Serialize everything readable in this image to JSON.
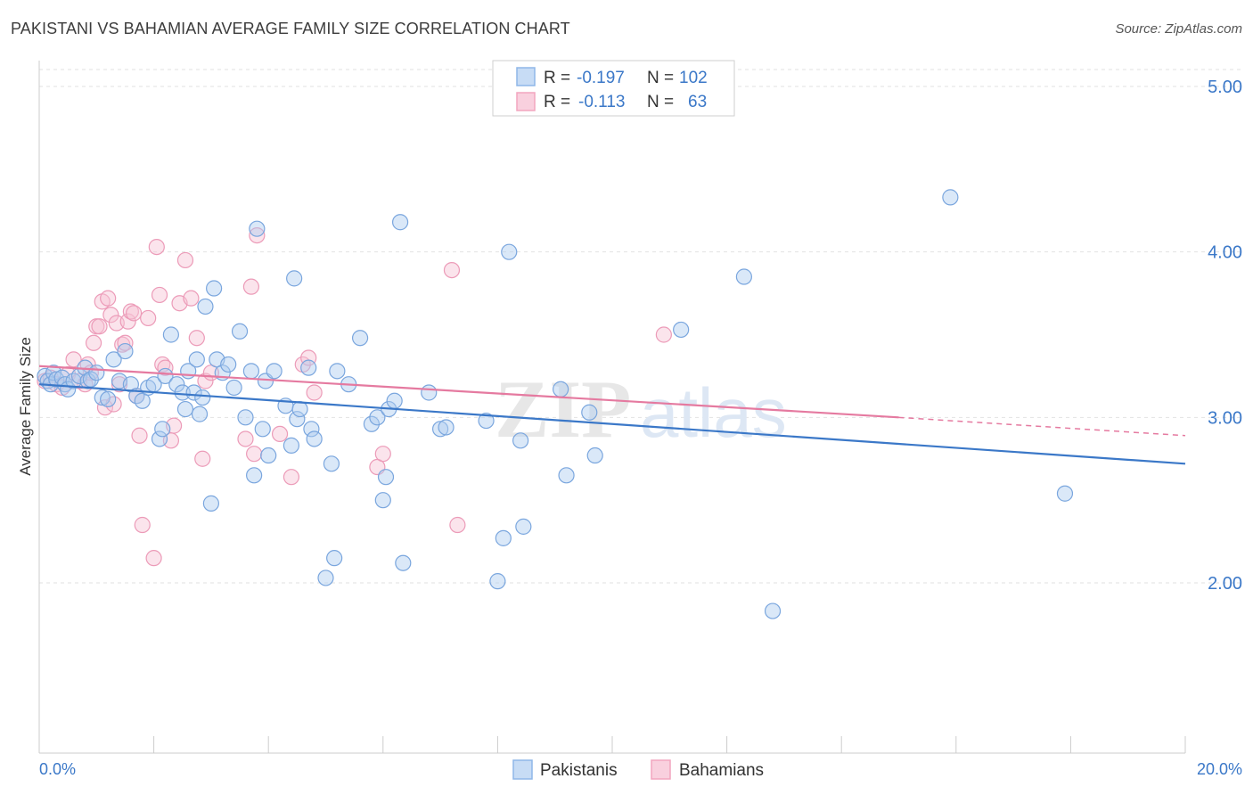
{
  "header": {
    "title": "PAKISTANI VS BAHAMIAN AVERAGE FAMILY SIZE CORRELATION CHART",
    "source": "Source: ZipAtlas.com"
  },
  "watermark": "ZIPatlas",
  "legend_box": {
    "rows": [
      {
        "r_label": "R =",
        "r_value": "-0.197",
        "n_label": "N =",
        "n_value": "102",
        "color": "#8fb7e8"
      },
      {
        "r_label": "R =",
        "r_value": "-0.113",
        "n_label": "N =",
        "n_value": "63",
        "color": "#f2a5bf"
      }
    ]
  },
  "bottom_legend": [
    {
      "label": "Pakistanis",
      "color": "#8fb7e8"
    },
    {
      "label": "Bahamians",
      "color": "#f2a5bf"
    }
  ],
  "chart_data": {
    "type": "scatter",
    "title": "PAKISTANI VS BAHAMIAN AVERAGE FAMILY SIZE CORRELATION CHART",
    "xlabel": "",
    "ylabel": "Average Family Size",
    "xlim": [
      0,
      20
    ],
    "ylim": [
      1.0,
      5.1
    ],
    "x_tick_labels": [
      "0.0%",
      "20.0%"
    ],
    "y_ticks": [
      2.0,
      3.0,
      4.0,
      5.0
    ],
    "y_tick_labels": [
      "2.00",
      "3.00",
      "4.00",
      "5.00"
    ],
    "grid": true,
    "colors": {
      "pakistanis": "#3b78c8",
      "bahamians": "#e57aa0",
      "blue_fill": "#aecbf0",
      "pink_fill": "#f7c3d5"
    },
    "series": [
      {
        "name": "Pakistanis",
        "trend": {
          "x": [
            0,
            20
          ],
          "y": [
            3.2,
            2.72
          ]
        },
        "points": [
          [
            0.1,
            3.25
          ],
          [
            0.15,
            3.22
          ],
          [
            0.2,
            3.2
          ],
          [
            0.25,
            3.27
          ],
          [
            0.3,
            3.23
          ],
          [
            0.4,
            3.24
          ],
          [
            0.45,
            3.2
          ],
          [
            0.5,
            3.17
          ],
          [
            0.6,
            3.22
          ],
          [
            0.7,
            3.25
          ],
          [
            0.8,
            3.3
          ],
          [
            0.85,
            3.22
          ],
          [
            0.9,
            3.23
          ],
          [
            1.0,
            3.27
          ],
          [
            1.1,
            3.12
          ],
          [
            1.2,
            3.11
          ],
          [
            1.3,
            3.35
          ],
          [
            1.4,
            3.22
          ],
          [
            1.5,
            3.4
          ],
          [
            1.6,
            3.2
          ],
          [
            1.7,
            3.13
          ],
          [
            1.8,
            3.1
          ],
          [
            1.9,
            3.18
          ],
          [
            2.0,
            3.2
          ],
          [
            2.1,
            2.87
          ],
          [
            2.15,
            2.93
          ],
          [
            2.2,
            3.25
          ],
          [
            2.3,
            3.5
          ],
          [
            2.4,
            3.2
          ],
          [
            2.5,
            3.15
          ],
          [
            2.55,
            3.05
          ],
          [
            2.6,
            3.28
          ],
          [
            2.7,
            3.15
          ],
          [
            2.75,
            3.35
          ],
          [
            2.8,
            3.02
          ],
          [
            2.85,
            3.12
          ],
          [
            2.9,
            3.67
          ],
          [
            3.0,
            2.48
          ],
          [
            3.05,
            3.78
          ],
          [
            3.1,
            3.35
          ],
          [
            3.2,
            3.27
          ],
          [
            3.3,
            3.32
          ],
          [
            3.4,
            3.18
          ],
          [
            3.5,
            3.52
          ],
          [
            3.6,
            3.0
          ],
          [
            3.7,
            3.28
          ],
          [
            3.75,
            2.65
          ],
          [
            3.8,
            4.14
          ],
          [
            3.9,
            2.93
          ],
          [
            3.95,
            3.22
          ],
          [
            4.0,
            2.77
          ],
          [
            4.1,
            3.28
          ],
          [
            4.3,
            3.07
          ],
          [
            4.4,
            2.83
          ],
          [
            4.45,
            3.84
          ],
          [
            4.5,
            2.99
          ],
          [
            4.55,
            3.05
          ],
          [
            4.7,
            3.3
          ],
          [
            4.75,
            2.93
          ],
          [
            4.8,
            2.87
          ],
          [
            5.0,
            2.03
          ],
          [
            5.1,
            2.72
          ],
          [
            5.15,
            2.15
          ],
          [
            5.2,
            3.28
          ],
          [
            5.4,
            3.2
          ],
          [
            5.6,
            3.48
          ],
          [
            5.8,
            2.96
          ],
          [
            5.9,
            3.0
          ],
          [
            6.0,
            2.5
          ],
          [
            6.05,
            2.64
          ],
          [
            6.1,
            3.05
          ],
          [
            6.2,
            3.1
          ],
          [
            6.3,
            4.18
          ],
          [
            6.35,
            2.12
          ],
          [
            6.8,
            3.15
          ],
          [
            7.0,
            2.93
          ],
          [
            7.1,
            2.94
          ],
          [
            7.8,
            2.98
          ],
          [
            8.0,
            2.01
          ],
          [
            8.1,
            2.27
          ],
          [
            8.2,
            4.0
          ],
          [
            8.4,
            2.86
          ],
          [
            8.45,
            2.34
          ],
          [
            9.1,
            3.17
          ],
          [
            9.2,
            2.65
          ],
          [
            9.6,
            3.03
          ],
          [
            9.7,
            2.77
          ],
          [
            11.2,
            3.53
          ],
          [
            12.3,
            3.85
          ],
          [
            12.8,
            1.83
          ],
          [
            15.9,
            4.33
          ],
          [
            17.9,
            2.54
          ]
        ]
      },
      {
        "name": "Bahamians",
        "trend": {
          "x": [
            0,
            15
          ],
          "y": [
            3.31,
            3.0
          ]
        },
        "trend_dashed": {
          "x": [
            15,
            20
          ],
          "y": [
            3.0,
            2.89
          ]
        },
        "points": [
          [
            0.1,
            3.22
          ],
          [
            0.2,
            3.24
          ],
          [
            0.3,
            3.2
          ],
          [
            0.4,
            3.18
          ],
          [
            0.5,
            3.26
          ],
          [
            0.6,
            3.35
          ],
          [
            0.7,
            3.22
          ],
          [
            0.8,
            3.2
          ],
          [
            0.85,
            3.32
          ],
          [
            0.9,
            3.27
          ],
          [
            0.95,
            3.45
          ],
          [
            1.0,
            3.55
          ],
          [
            1.05,
            3.55
          ],
          [
            1.1,
            3.7
          ],
          [
            1.15,
            3.06
          ],
          [
            1.2,
            3.72
          ],
          [
            1.25,
            3.62
          ],
          [
            1.3,
            3.08
          ],
          [
            1.35,
            3.57
          ],
          [
            1.4,
            3.2
          ],
          [
            1.45,
            3.44
          ],
          [
            1.5,
            3.45
          ],
          [
            1.55,
            3.58
          ],
          [
            1.6,
            3.64
          ],
          [
            1.65,
            3.63
          ],
          [
            1.7,
            3.13
          ],
          [
            1.75,
            2.89
          ],
          [
            1.8,
            2.35
          ],
          [
            1.9,
            3.6
          ],
          [
            2.0,
            2.15
          ],
          [
            2.05,
            4.03
          ],
          [
            2.1,
            3.74
          ],
          [
            2.15,
            3.32
          ],
          [
            2.2,
            3.3
          ],
          [
            2.3,
            2.86
          ],
          [
            2.35,
            2.95
          ],
          [
            2.45,
            3.69
          ],
          [
            2.55,
            3.95
          ],
          [
            2.65,
            3.72
          ],
          [
            2.75,
            3.48
          ],
          [
            2.85,
            2.75
          ],
          [
            2.9,
            3.22
          ],
          [
            3.0,
            3.27
          ],
          [
            3.6,
            2.87
          ],
          [
            3.7,
            3.79
          ],
          [
            3.75,
            2.78
          ],
          [
            3.8,
            4.1
          ],
          [
            4.2,
            2.9
          ],
          [
            4.4,
            2.64
          ],
          [
            4.6,
            3.32
          ],
          [
            4.7,
            3.36
          ],
          [
            4.8,
            3.15
          ],
          [
            5.9,
            2.7
          ],
          [
            6.0,
            2.78
          ],
          [
            7.2,
            3.89
          ],
          [
            7.3,
            2.35
          ],
          [
            10.9,
            3.5
          ]
        ]
      }
    ]
  }
}
